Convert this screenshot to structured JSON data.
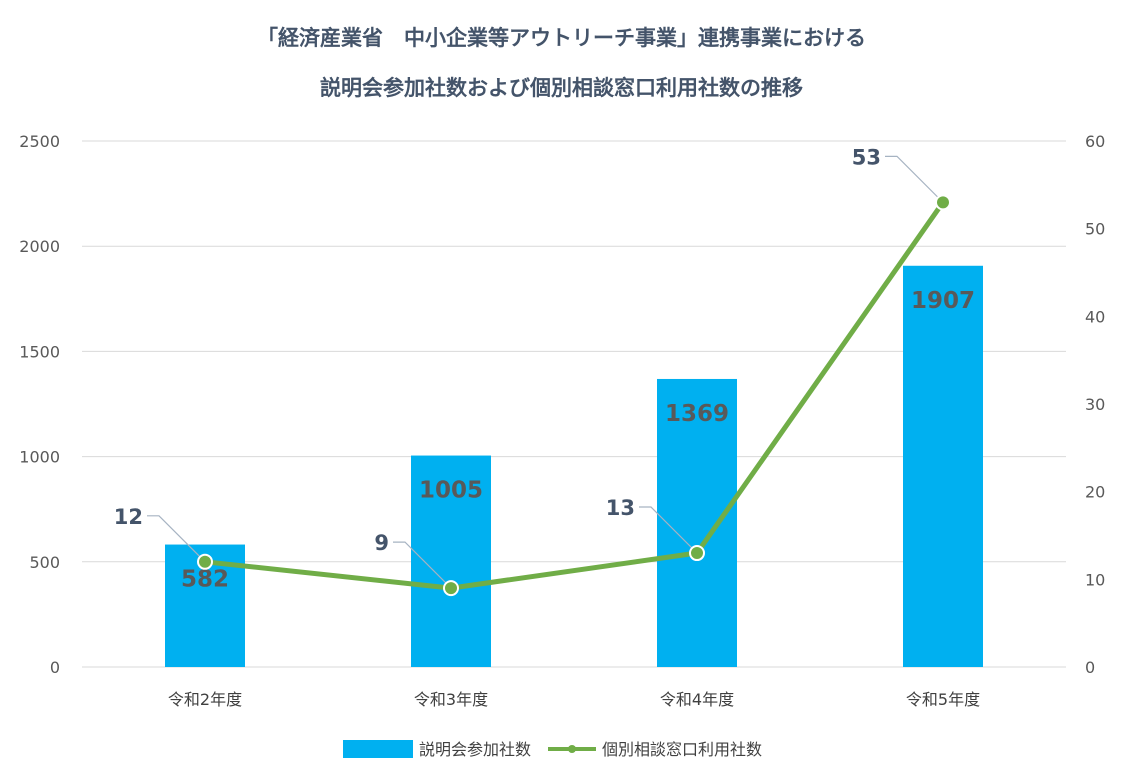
{
  "title_line1": "「経済産業省　中小企業等アウトリーチ事業」連携事業における",
  "title_line2": "説明会参加社数および個別相談窓口利用社数の推移",
  "colors": {
    "bar": "#00b0f0",
    "line": "#70ad47",
    "grid": "#d9d9d9",
    "title": "#44546a"
  },
  "chart_data": {
    "type": "bar",
    "categories": [
      "令和2年度",
      "令和3年度",
      "令和4年度",
      "令和5年度"
    ],
    "series": [
      {
        "name": "説明会参加社数",
        "type": "bar",
        "axis": "left",
        "values": [
          582,
          1005,
          1369,
          1907
        ]
      },
      {
        "name": "個別相談窓口利用社数",
        "type": "line",
        "axis": "right",
        "values": [
          12,
          9,
          13,
          53
        ]
      }
    ],
    "y_left": {
      "min": 0,
      "max": 2500,
      "ticks": [
        "0",
        "500",
        "1000",
        "1500",
        "2000",
        "2500"
      ]
    },
    "y_right": {
      "min": 0,
      "max": 60,
      "ticks": [
        "0",
        "10",
        "20",
        "30",
        "40",
        "50",
        "60"
      ]
    },
    "grid": true,
    "legend": "bottom"
  }
}
